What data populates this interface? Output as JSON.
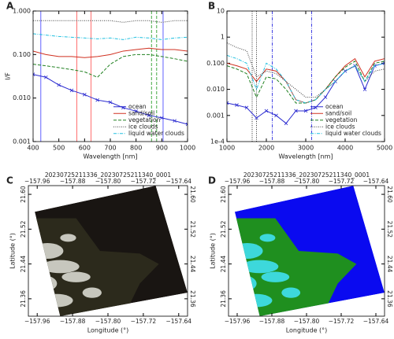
{
  "chart_data": [
    {
      "type": "line",
      "panel": "A",
      "ylabel": "I/F",
      "xlabel": "Wavelength [nm]",
      "log_y": true,
      "legend": "lower right",
      "xlim": [
        400,
        1000
      ],
      "xticks": [
        400,
        500,
        600,
        700,
        800,
        900,
        1000
      ],
      "ylim": [
        0.001,
        1
      ],
      "yticks": [
        0.001,
        {
          "value": 0.01,
          "label": "0.010"
        },
        {
          "value": 0.1,
          "label": "0.100"
        },
        {
          "value": 1,
          "label": "1.000"
        }
      ],
      "x": [
        400,
        450,
        500,
        550,
        600,
        650,
        700,
        750,
        800,
        850,
        900,
        950,
        1000
      ],
      "series": [
        {
          "name": "ocean",
          "color": "#2a2ad0",
          "style": "solid",
          "marker": "x",
          "values": [
            0.035,
            0.03,
            0.02,
            0.015,
            0.012,
            0.009,
            0.008,
            0.006,
            0.005,
            0.004,
            0.0035,
            0.003,
            0.0025
          ]
        },
        {
          "name": "sand/soil",
          "color": "#d03020",
          "style": "solid",
          "values": [
            0.12,
            0.1,
            0.09,
            0.09,
            0.085,
            0.09,
            0.1,
            0.12,
            0.13,
            0.14,
            0.13,
            0.13,
            0.12
          ]
        },
        {
          "name": "vegetation",
          "color": "#208020",
          "style": "dashed",
          "values": [
            0.06,
            0.055,
            0.05,
            0.045,
            0.04,
            0.03,
            0.06,
            0.09,
            0.1,
            0.1,
            0.09,
            0.08,
            0.07
          ]
        },
        {
          "name": "ice clouds",
          "color": "#404040",
          "style": "dotted",
          "values": [
            0.6,
            0.6,
            0.6,
            0.6,
            0.6,
            0.6,
            0.6,
            0.55,
            0.6,
            0.6,
            0.55,
            0.6,
            0.6
          ]
        },
        {
          "name": "liquid water clouds",
          "color": "#20c0e0",
          "style": "dashdot",
          "values": [
            0.3,
            0.28,
            0.26,
            0.25,
            0.24,
            0.23,
            0.24,
            0.22,
            0.25,
            0.24,
            0.22,
            0.24,
            0.25
          ]
        }
      ],
      "vlines": [
        {
          "x": 430,
          "color": "#5050ff",
          "style": "solid"
        },
        {
          "x": 570,
          "color": "#ff6060",
          "style": "solid"
        },
        {
          "x": 625,
          "color": "#ff6060",
          "style": "solid"
        },
        {
          "x": 860,
          "color": "#30a030",
          "style": "dashed"
        },
        {
          "x": 880,
          "color": "#30a030",
          "style": "dashed"
        },
        {
          "x": 905,
          "color": "#5050ff",
          "style": "solid"
        }
      ]
    },
    {
      "type": "line",
      "panel": "B",
      "xlabel": "Wavelength [nm]",
      "log_y": true,
      "legend": "lower right",
      "xlim": [
        1000,
        5000
      ],
      "xticks": [
        1000,
        2000,
        3000,
        4000,
        5000
      ],
      "ylim": [
        0.0001,
        10
      ],
      "yticks": [
        {
          "value": 0.0001,
          "label": "1e-4"
        },
        0.001,
        {
          "value": 0.01,
          "label": "0.010"
        },
        {
          "value": 0.1,
          "label": "0.100"
        },
        1,
        10
      ],
      "x": [
        1000,
        1250,
        1500,
        1750,
        2000,
        2250,
        2500,
        2750,
        3000,
        3250,
        3500,
        3750,
        4000,
        4250,
        4500,
        4750,
        5000
      ],
      "series": [
        {
          "name": "ocean",
          "color": "#2a2ad0",
          "style": "solid",
          "marker": "x",
          "values": [
            0.003,
            0.0025,
            0.002,
            0.0008,
            0.0015,
            0.001,
            0.0005,
            0.0015,
            0.0015,
            0.002,
            0.005,
            0.02,
            0.05,
            0.08,
            0.01,
            0.08,
            0.1
          ]
        },
        {
          "name": "sand/soil",
          "color": "#d03020",
          "style": "solid",
          "values": [
            0.1,
            0.08,
            0.06,
            0.02,
            0.06,
            0.05,
            0.02,
            0.004,
            0.003,
            0.004,
            0.01,
            0.03,
            0.08,
            0.15,
            0.03,
            0.12,
            0.15
          ]
        },
        {
          "name": "vegetation",
          "color": "#208020",
          "style": "dashed",
          "values": [
            0.08,
            0.06,
            0.04,
            0.005,
            0.03,
            0.025,
            0.01,
            0.003,
            0.003,
            0.004,
            0.01,
            0.03,
            0.07,
            0.12,
            0.02,
            0.1,
            0.12
          ]
        },
        {
          "name": "ice clouds",
          "color": "#404040",
          "style": "dotted",
          "values": [
            0.6,
            0.4,
            0.3,
            0.03,
            0.05,
            0.04,
            0.02,
            0.01,
            0.005,
            0.005,
            0.01,
            0.02,
            0.05,
            0.08,
            0.02,
            0.05,
            0.06
          ]
        },
        {
          "name": "liquid water clouds",
          "color": "#20c0e0",
          "style": "dashdot",
          "values": [
            0.2,
            0.15,
            0.1,
            0.01,
            0.1,
            0.06,
            0.02,
            0.004,
            0.003,
            0.004,
            0.01,
            0.02,
            0.05,
            0.08,
            0.02,
            0.08,
            0.1
          ]
        }
      ],
      "vlines": [
        {
          "x": 1640,
          "color": "#202020",
          "style": "dotted"
        },
        {
          "x": 1750,
          "color": "#202020",
          "style": "dotted"
        },
        {
          "x": 2150,
          "color": "#3030e0",
          "style": "dashdot"
        },
        {
          "x": 3150,
          "color": "#3030e0",
          "style": "dashdot"
        }
      ]
    },
    {
      "type": "map",
      "panel": "C",
      "title": "20230725211336_20230725211340_0001",
      "xlabel": "Longitude (°)",
      "ylabel": "Latitude (°)",
      "style": "rgb",
      "xlim": [
        -157.98,
        -157.62
      ],
      "xticks": [
        {
          "value": -157.96,
          "label": "−157.96"
        },
        {
          "value": -157.88,
          "label": "−157.88"
        },
        {
          "value": -157.8,
          "label": "−157.80"
        },
        {
          "value": -157.72,
          "label": "−157.72"
        },
        {
          "value": -157.64,
          "label": "−157.64"
        }
      ],
      "ylim": [
        21.32,
        21.62
      ],
      "yticks": [
        21.36,
        21.44,
        21.52,
        {
          "value": 21.6,
          "label": "21.60"
        }
      ]
    },
    {
      "type": "map",
      "panel": "D",
      "title": "20230725211336_20230725211340_0001",
      "xlabel": "Longitude (°)",
      "ylabel": "Latitude (°)",
      "style": "class",
      "xlim": [
        -157.98,
        -157.62
      ],
      "xticks": [
        {
          "value": -157.96,
          "label": "−157.96"
        },
        {
          "value": -157.88,
          "label": "−157.88"
        },
        {
          "value": -157.8,
          "label": "−157.80"
        },
        {
          "value": -157.72,
          "label": "−157.72"
        },
        {
          "value": -157.64,
          "label": "−157.64"
        }
      ],
      "ylim": [
        21.32,
        21.62
      ],
      "yticks": [
        21.36,
        21.44,
        21.52,
        {
          "value": 21.6,
          "label": "21.60"
        }
      ]
    }
  ]
}
